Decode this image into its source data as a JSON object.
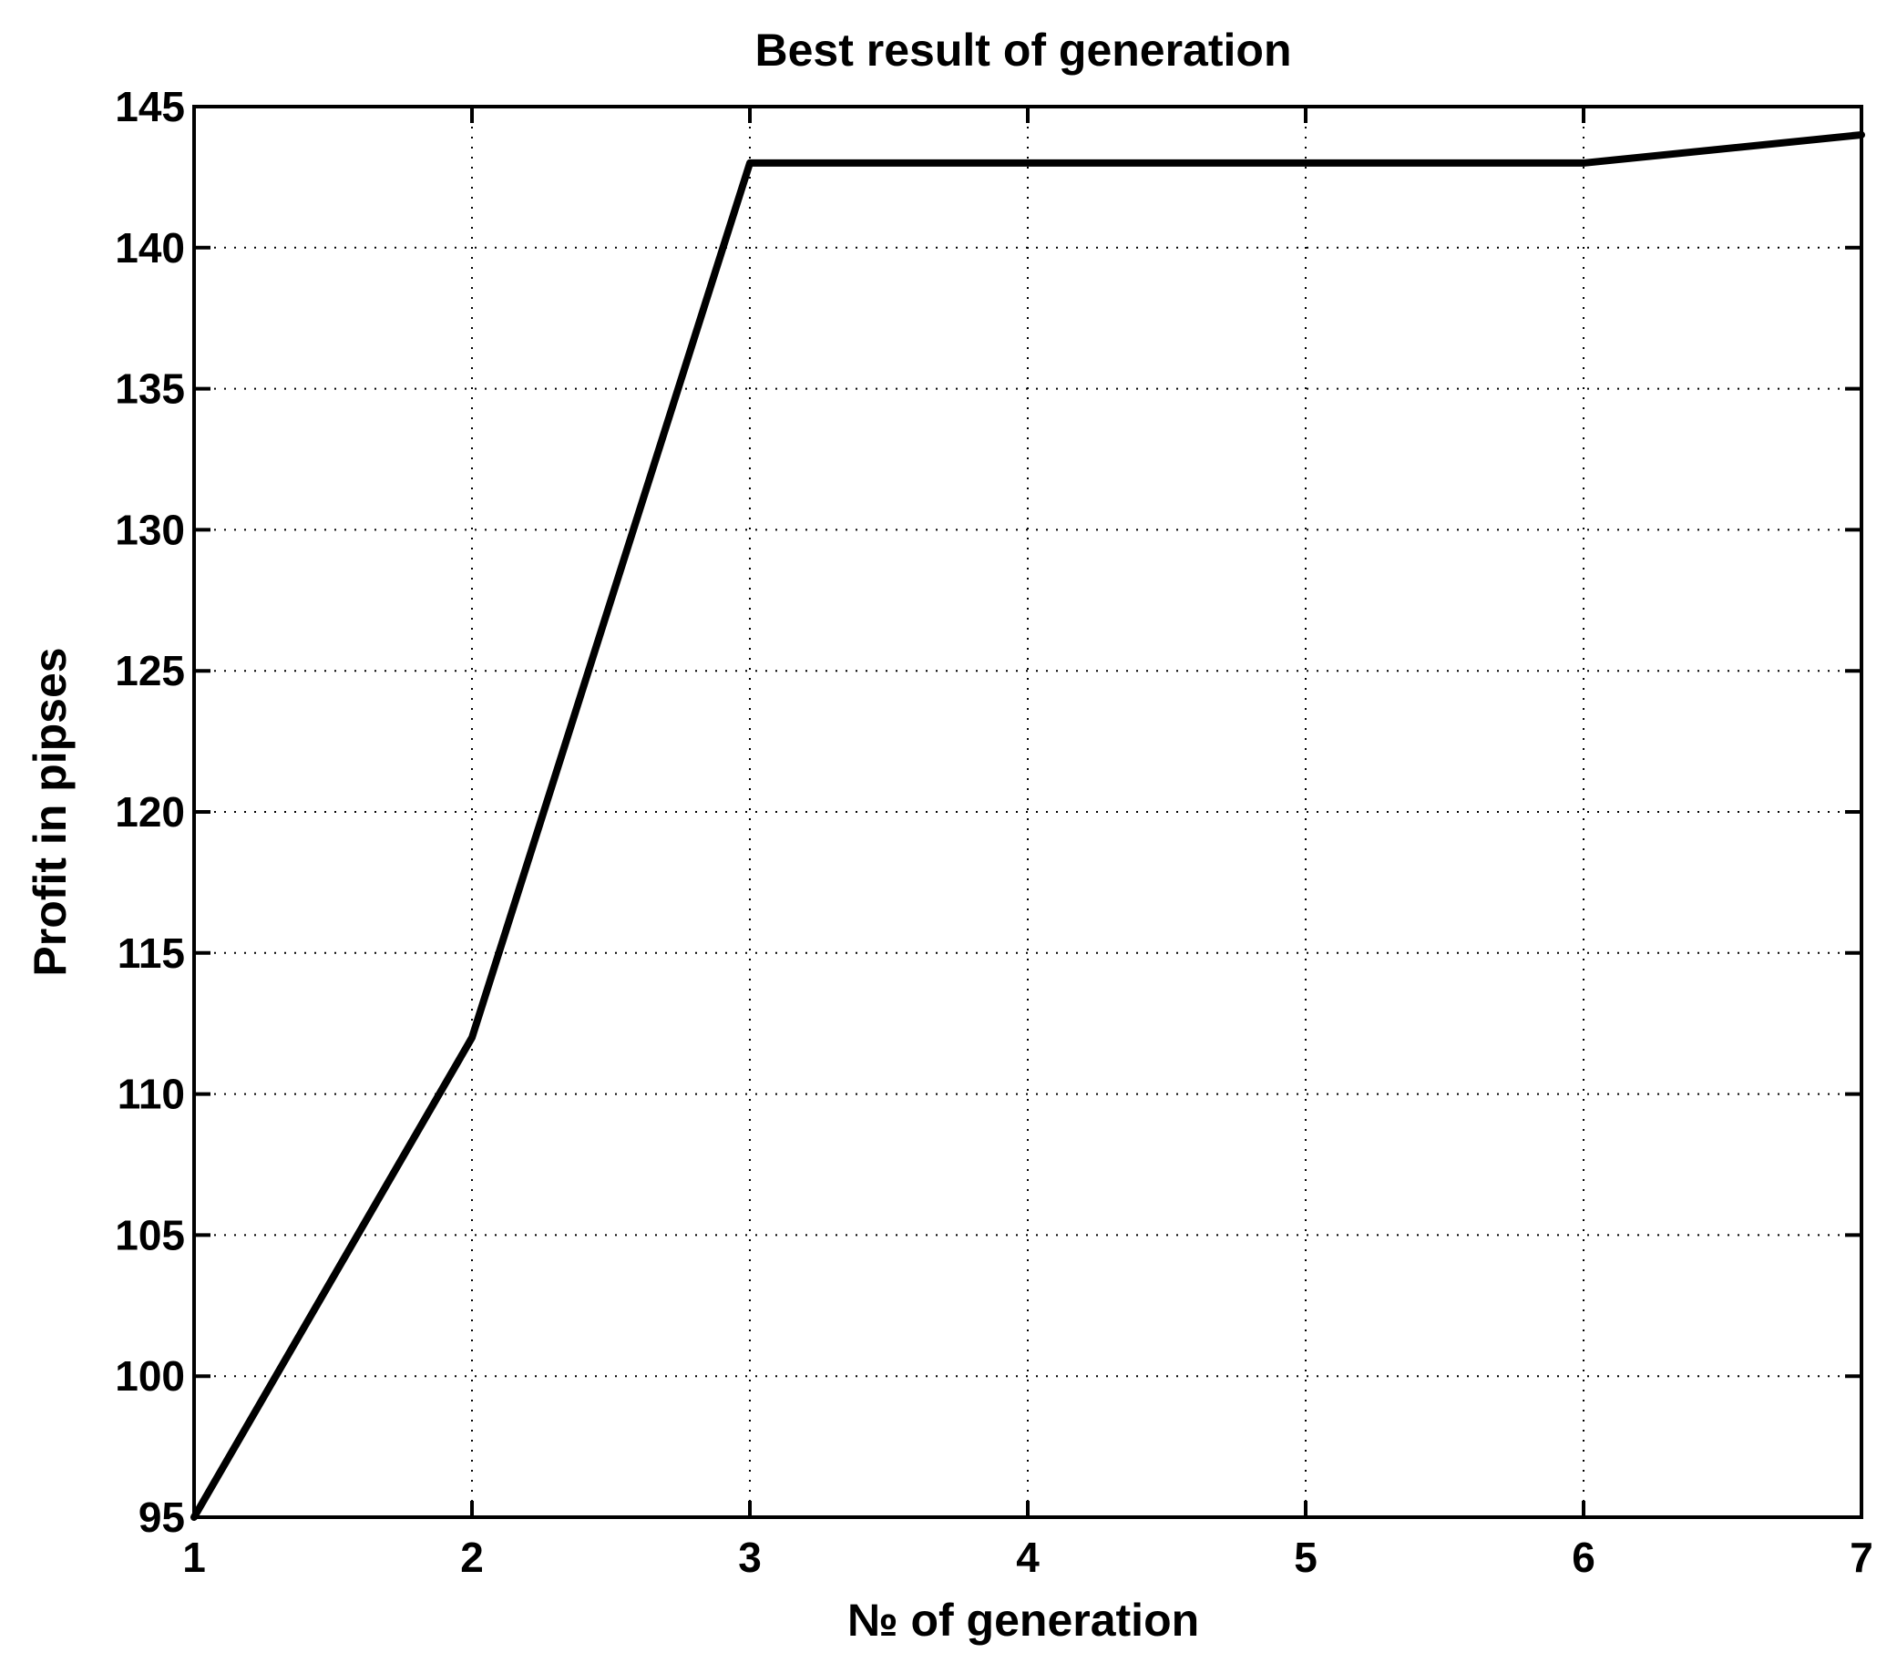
{
  "chart_data": {
    "type": "line",
    "title": "Best result of generation",
    "xlabel": "№ of generation",
    "ylabel": "Profit in pipses",
    "xlim": [
      1,
      7
    ],
    "ylim": [
      95,
      145
    ],
    "xticks": [
      "1",
      "2",
      "3",
      "4",
      "5",
      "6",
      "7"
    ],
    "yticks": [
      "95",
      "100",
      "105",
      "110",
      "115",
      "120",
      "125",
      "130",
      "135",
      "140",
      "145"
    ],
    "grid": true,
    "series": [
      {
        "x": [
          1,
          2,
          3,
          4,
          5,
          6,
          7
        ],
        "values": [
          95,
          112,
          143,
          143,
          143,
          143,
          144
        ]
      }
    ],
    "line_color": "#000000"
  }
}
